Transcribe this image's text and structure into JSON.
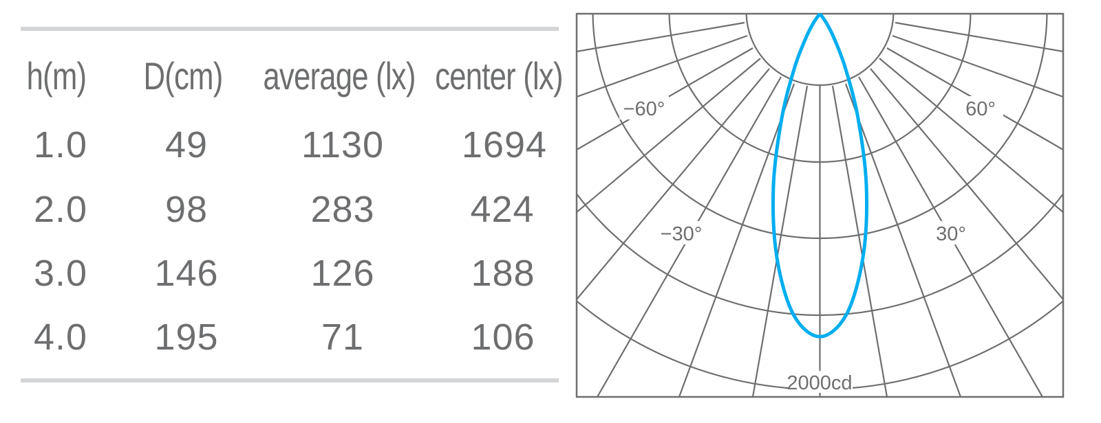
{
  "table": {
    "headers": [
      "h(m)",
      "D(cm)",
      "average (lx)",
      "center (lx)"
    ],
    "rows": [
      [
        "1.0",
        "49",
        "1130",
        "1694"
      ],
      [
        "2.0",
        "98",
        "283",
        "424"
      ],
      [
        "3.0",
        "146",
        "126",
        "188"
      ],
      [
        "4.0",
        "195",
        "71",
        "106"
      ]
    ]
  },
  "chart_data": {
    "type": "polar",
    "angle_labels": [
      "−60°",
      "60°",
      "−30°",
      "30°"
    ],
    "scale_label": "2000cd",
    "rmax_cd": 2000,
    "grid": true,
    "curve_color": "#00aeef",
    "grid_color": "#6d6e70",
    "series": [
      {
        "angles_deg": [
          0,
          5,
          10,
          15,
          20,
          25,
          30,
          35
        ],
        "intensity_cd": [
          1710,
          1600,
          1310,
          950,
          590,
          320,
          150,
          60
        ]
      }
    ]
  }
}
